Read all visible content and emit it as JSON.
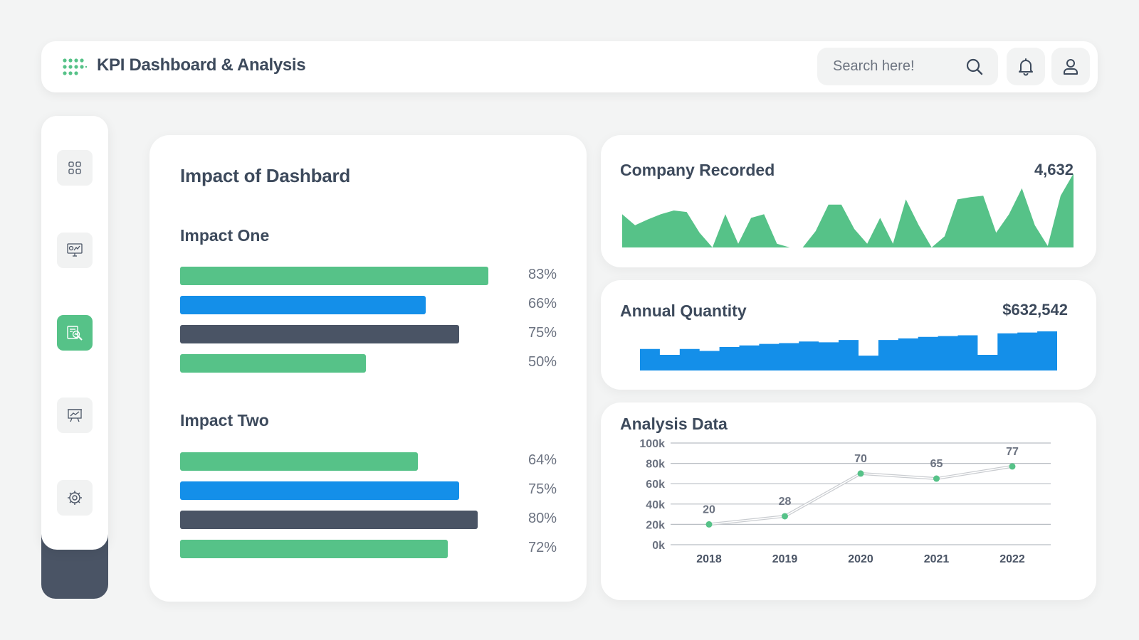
{
  "header": {
    "title": "KPI Dashboard & Analysis",
    "search_placeholder": "Search here!",
    "icons": [
      "dots-grid-logo-icon",
      "search-icon",
      "bell-icon",
      "user-icon"
    ]
  },
  "sidebar": {
    "items": [
      {
        "icon": "grid-icon",
        "active": false
      },
      {
        "icon": "monitor-chart-icon",
        "active": false
      },
      {
        "icon": "report-search-icon",
        "active": true
      },
      {
        "icon": "presentation-chart-icon",
        "active": false
      },
      {
        "icon": "settings-gear-icon",
        "active": false
      }
    ]
  },
  "colors": {
    "green": "#56c288",
    "blue": "#148fe9",
    "dark": "#4a5465",
    "text": "#3d4a5c"
  },
  "impact": {
    "title": "Impact of Dashbard",
    "groups": [
      {
        "title": "Impact One",
        "bars": [
          {
            "value": 83,
            "label": "83%",
            "color": "green"
          },
          {
            "value": 66,
            "label": "66%",
            "color": "blue"
          },
          {
            "value": 75,
            "label": "75%",
            "color": "dark"
          },
          {
            "value": 50,
            "label": "50%",
            "color": "green"
          }
        ]
      },
      {
        "title": "Impact Two",
        "bars": [
          {
            "value": 64,
            "label": "64%",
            "color": "green"
          },
          {
            "value": 75,
            "label": "75%",
            "color": "blue"
          },
          {
            "value": 80,
            "label": "80%",
            "color": "dark"
          },
          {
            "value": 72,
            "label": "72%",
            "color": "green"
          }
        ]
      }
    ]
  },
  "company_recorded": {
    "title": "Company Recorded",
    "value": "4,632"
  },
  "annual_quantity": {
    "title": "Annual Quantity",
    "value": "$632,542"
  },
  "analysis": {
    "title": "Analysis Data"
  },
  "chart_data": [
    {
      "type": "area",
      "name": "company-recorded-sparkline",
      "values": [
        45,
        30,
        38,
        45,
        50,
        48,
        20,
        0,
        45,
        5,
        40,
        45,
        5,
        0,
        0,
        22,
        58,
        58,
        25,
        5,
        40,
        5,
        65,
        30,
        0,
        15,
        65,
        68,
        70,
        20,
        45,
        80,
        30,
        2,
        70,
        100
      ],
      "color": "#56c288"
    },
    {
      "type": "area",
      "name": "annual-quantity-sparkline",
      "values": [
        55,
        40,
        55,
        50,
        60,
        64,
        68,
        70,
        74,
        72,
        78,
        38,
        78,
        82,
        86,
        88,
        90,
        40,
        95,
        97,
        100
      ],
      "color": "#148fe9"
    },
    {
      "type": "line",
      "name": "analysis-data",
      "categories": [
        "2018",
        "2019",
        "2020",
        "2021",
        "2022"
      ],
      "values": [
        20,
        28,
        70,
        65,
        77
      ],
      "value_labels": [
        "20",
        "28",
        "70",
        "65",
        "77"
      ],
      "yticks": [
        "0k",
        "20k",
        "40k",
        "60k",
        "80k",
        "100k"
      ],
      "ylim": [
        0,
        100
      ],
      "grid": true,
      "color": "#56c288"
    }
  ]
}
